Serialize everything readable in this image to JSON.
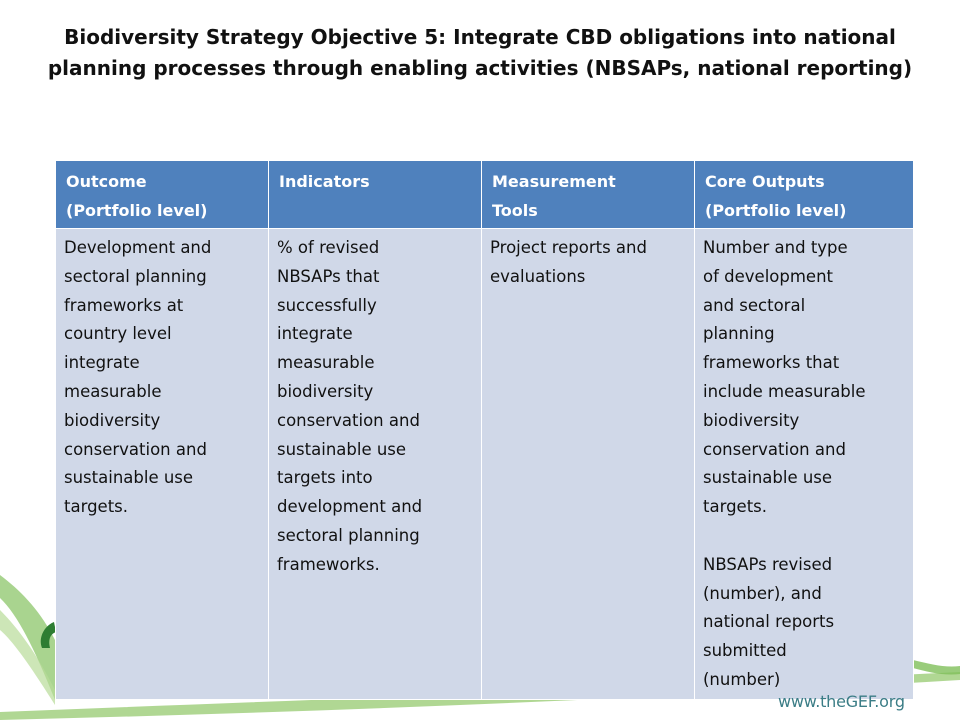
{
  "slide": {
    "title_bold": "Biodiversity Strategy Objective 5:",
    "title_rest": "Integrate CBD obligations into national planning processes through enabling activities (NBSAPs, national reporting)",
    "footer_url": "www.theGEF.org",
    "colors": {
      "header_fill": "#4f81bd",
      "cell_fill": "#d0d8e8",
      "logo_green": "#6aaa3c",
      "logo_text": "#3b7d86"
    }
  },
  "table": {
    "headers": [
      "Outcome\n(Portfolio level)",
      "Indicators",
      "Measurement\nTools",
      "Core Outputs\n(Portfolio level)"
    ],
    "row": [
      "Development and\nsectoral planning\nframeworks at\ncountry level\nintegrate\nmeasurable\nbiodiversity\nconservation and\nsustainable use\ntargets.",
      "% of revised\nNBSAPs that\nsuccessfully\nintegrate\nmeasurable\nbiodiversity\nconservation and\nsustainable use\ntargets into\ndevelopment and\nsectoral planning\nframeworks.",
      "Project reports and\nevaluations",
      "Number and type\nof development\nand sectoral\nplanning\nframeworks that\ninclude measurable\nbiodiversity\nconservation and\nsustainable use\ntargets.\n\nNBSAPs revised\n(number), and\nnational reports\nsubmitted\n(number)"
    ]
  }
}
